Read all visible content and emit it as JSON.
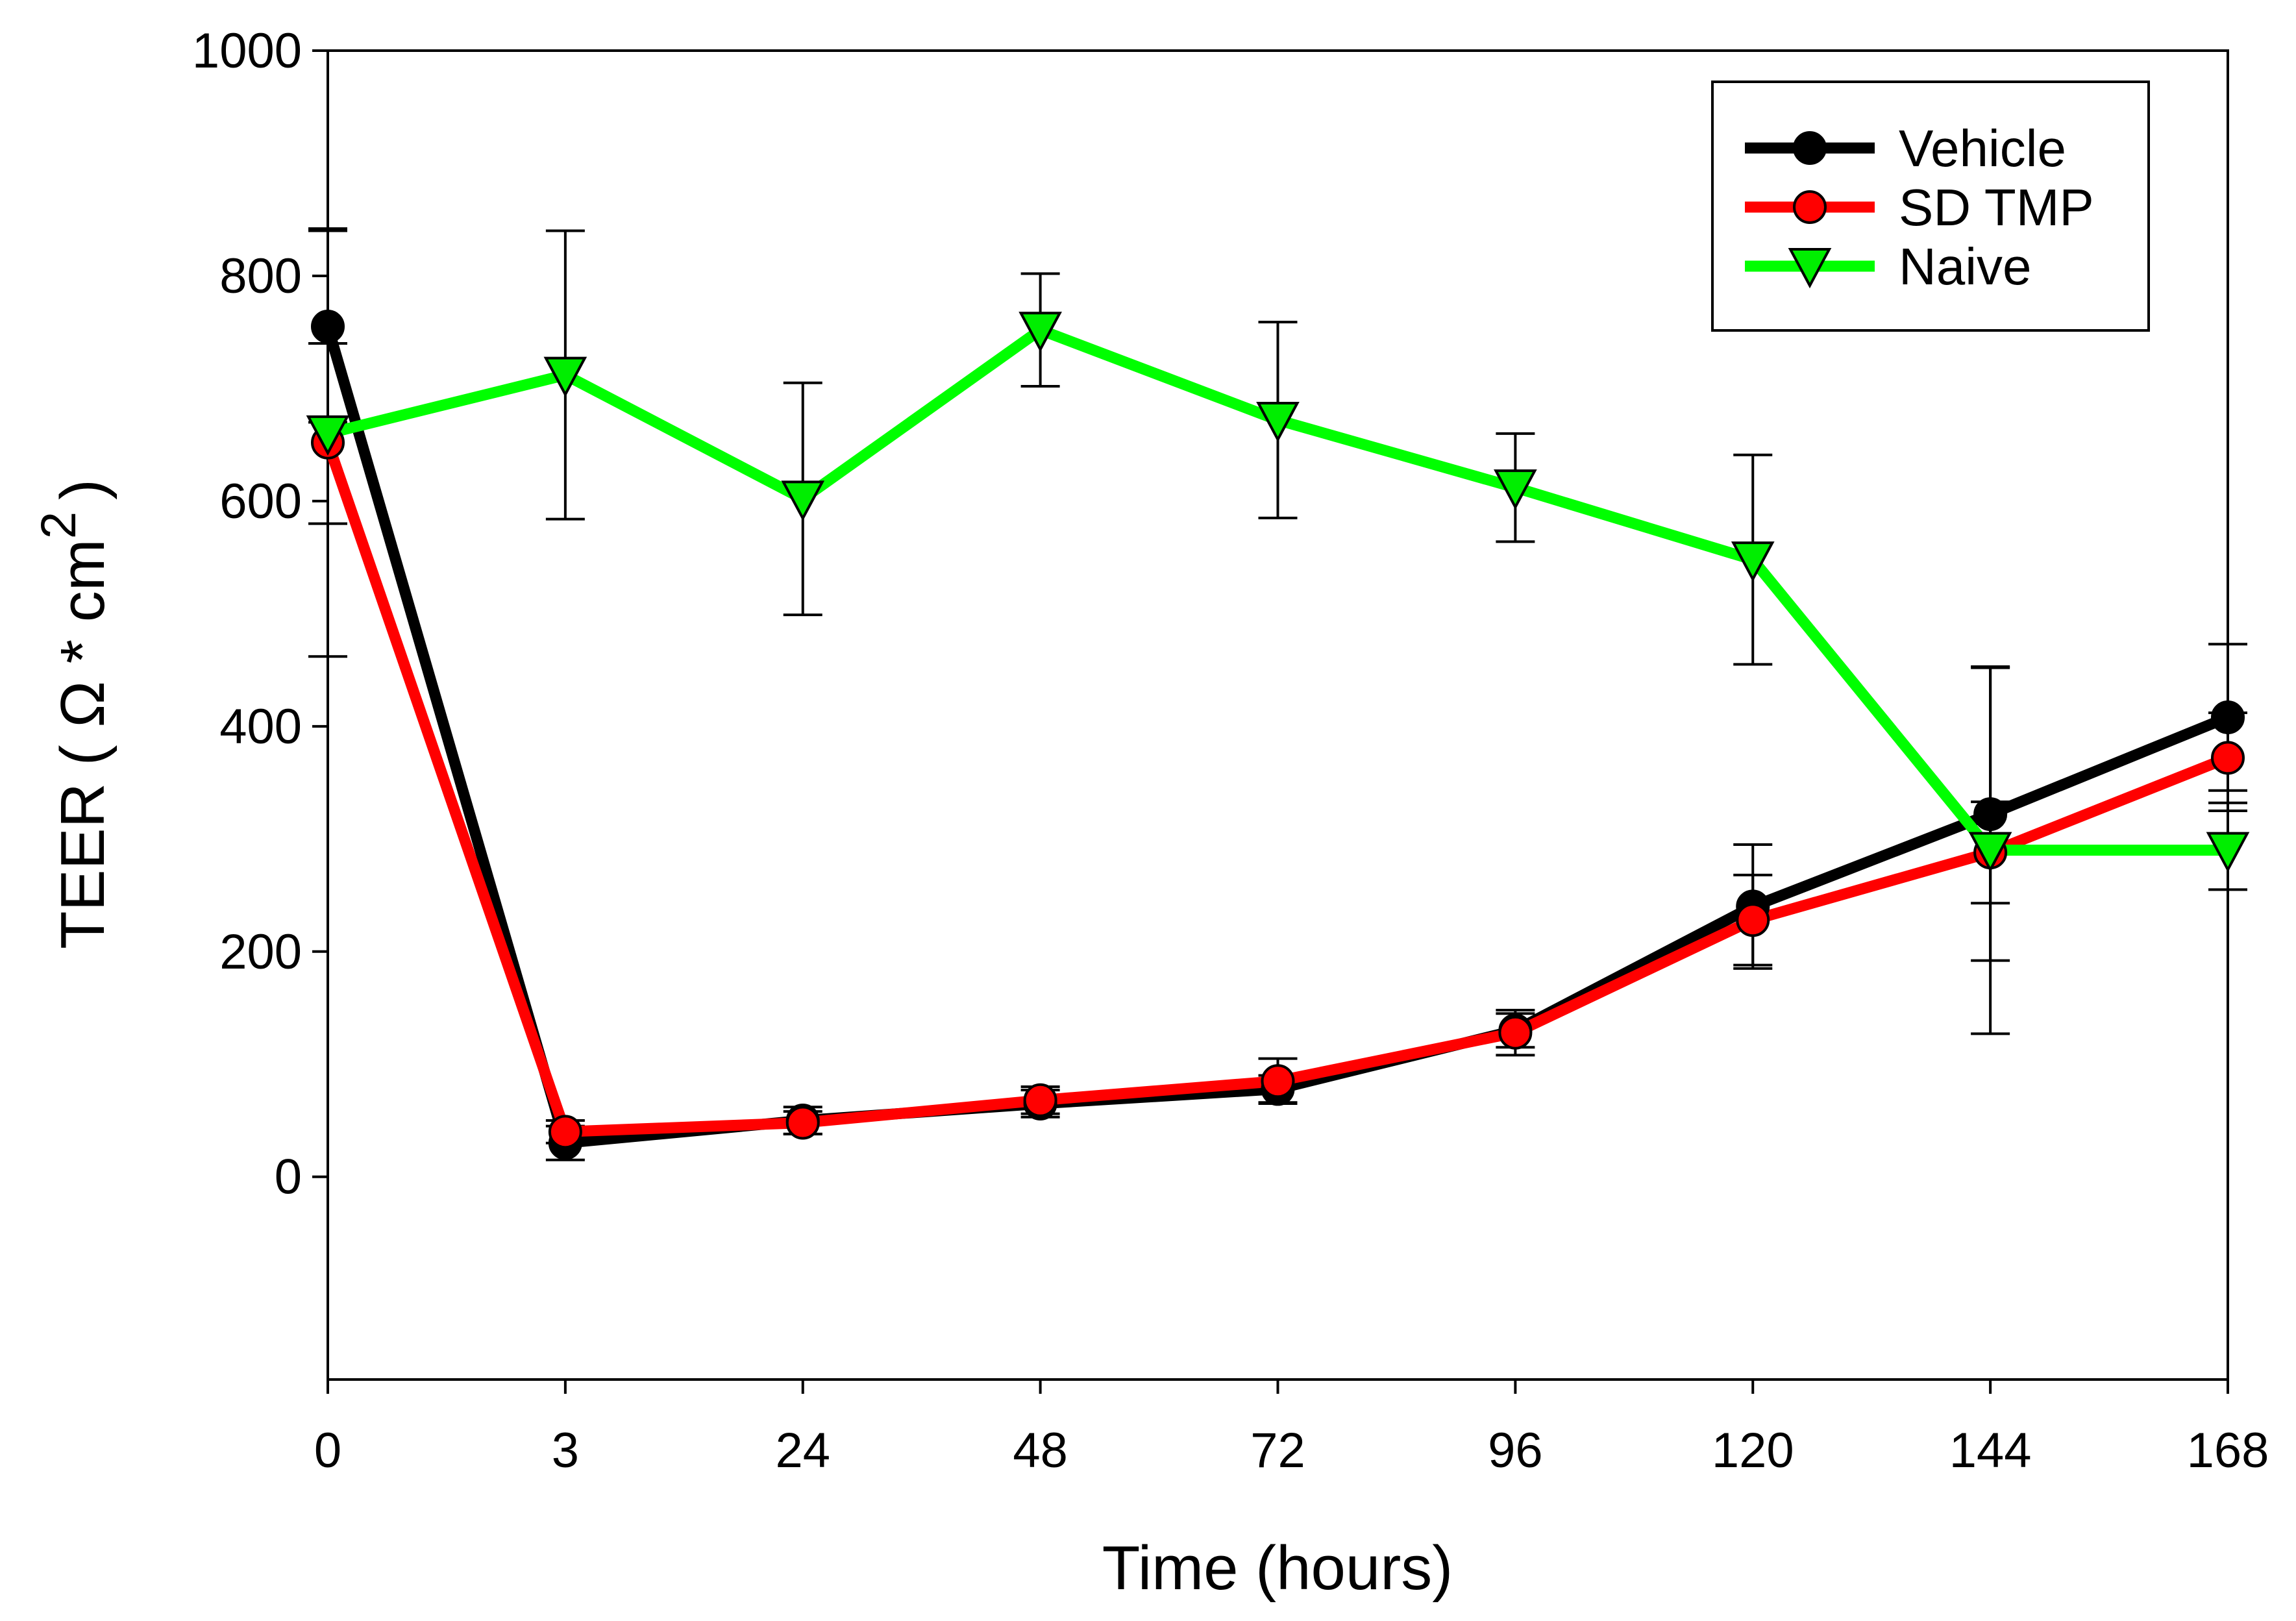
{
  "chart_data": {
    "type": "line",
    "title": "",
    "xlabel": "Time (hours)",
    "ylabel_main": "TEER ( Ω * cm",
    "ylabel_sup": "2",
    "ylabel_close": ")",
    "categories": [
      "0",
      "3",
      "24",
      "48",
      "72",
      "96",
      "120",
      "144",
      "168"
    ],
    "ylim": [
      -180,
      1000
    ],
    "yticks": [
      0,
      200,
      400,
      600,
      800,
      1000
    ],
    "legend_position": "top-right",
    "series": [
      {
        "name": "Vehicle",
        "color": "#000000",
        "marker_fill": "#000000",
        "marker": "circle",
        "values": [
          755,
          30,
          50,
          65,
          78,
          130,
          240,
          322,
          408
        ],
        "errors": [
          85,
          15,
          12,
          12,
          12,
          15,
          55,
          130,
          65
        ]
      },
      {
        "name": "SD TMP",
        "color": "#ff0000",
        "marker_fill": "#ff0000",
        "marker": "circle",
        "values": [
          652,
          40,
          48,
          68,
          85,
          128,
          228,
          288,
          372
        ],
        "errors": [
          190,
          10,
          10,
          12,
          20,
          20,
          40,
          45,
          40
        ]
      },
      {
        "name": "Naive",
        "color": "#00ff00",
        "marker_fill": "#00ee00",
        "marker": "triangle-down",
        "values": [
          660,
          712,
          602,
          752,
          672,
          612,
          548,
          290,
          290
        ],
        "errors": [
          80,
          128,
          103,
          50,
          87,
          48,
          93,
          163,
          35
        ]
      }
    ]
  }
}
